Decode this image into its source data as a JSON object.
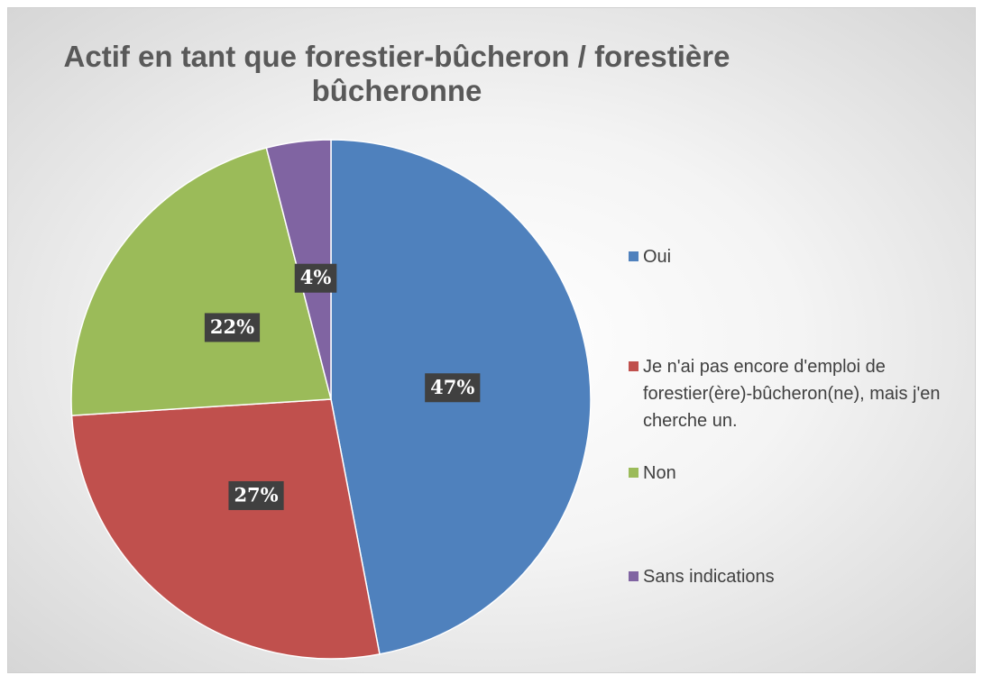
{
  "chart_data": {
    "type": "pie",
    "title": "Actif en tant que forestier-bûcheron / forestière bûcheronne",
    "categories": [
      "Oui",
      "Je n'ai pas encore d'emploi de forestier(ère)-bûcheron(ne), mais j'en cherche un.",
      "Non",
      "Sans indications"
    ],
    "values": [
      47,
      27,
      22,
      4
    ],
    "value_labels": [
      "47%",
      "27%",
      "22%",
      "4%"
    ],
    "colors": [
      "#4f81bd",
      "#c0504d",
      "#9bbb59",
      "#8064a2"
    ],
    "legend": "right"
  }
}
